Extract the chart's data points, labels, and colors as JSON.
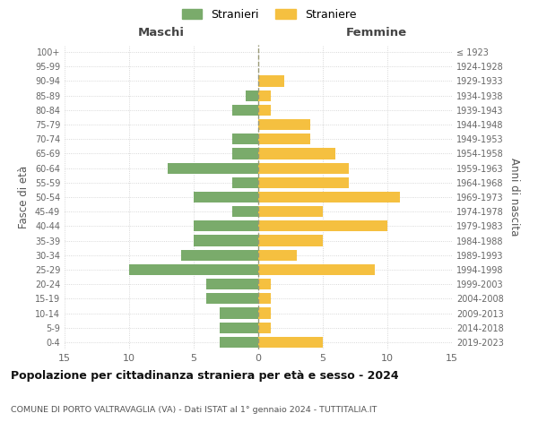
{
  "age_groups": [
    "0-4",
    "5-9",
    "10-14",
    "15-19",
    "20-24",
    "25-29",
    "30-34",
    "35-39",
    "40-44",
    "45-49",
    "50-54",
    "55-59",
    "60-64",
    "65-69",
    "70-74",
    "75-79",
    "80-84",
    "85-89",
    "90-94",
    "95-99",
    "100+"
  ],
  "birth_years": [
    "2019-2023",
    "2014-2018",
    "2009-2013",
    "2004-2008",
    "1999-2003",
    "1994-1998",
    "1989-1993",
    "1984-1988",
    "1979-1983",
    "1974-1978",
    "1969-1973",
    "1964-1968",
    "1959-1963",
    "1954-1958",
    "1949-1953",
    "1944-1948",
    "1939-1943",
    "1934-1938",
    "1929-1933",
    "1924-1928",
    "≤ 1923"
  ],
  "maschi": [
    3,
    3,
    3,
    4,
    4,
    10,
    6,
    5,
    5,
    2,
    5,
    2,
    7,
    2,
    2,
    0,
    2,
    1,
    0,
    0,
    0
  ],
  "femmine": [
    5,
    1,
    1,
    1,
    1,
    9,
    3,
    5,
    10,
    5,
    11,
    7,
    7,
    6,
    4,
    4,
    1,
    1,
    2,
    0,
    0
  ],
  "color_maschi": "#7aab6b",
  "color_femmine": "#f5c040",
  "background_color": "#ffffff",
  "grid_color": "#cccccc",
  "title": "Popolazione per cittadinanza straniera per età e sesso - 2024",
  "subtitle": "COMUNE DI PORTO VALTRAVAGLIA (VA) - Dati ISTAT al 1° gennaio 2024 - TUTTITALIA.IT",
  "xlabel_left": "Maschi",
  "xlabel_right": "Femmine",
  "ylabel_left": "Fasce di età",
  "ylabel_right": "Anni di nascita",
  "legend_stranieri": "Stranieri",
  "legend_straniere": "Straniere",
  "xlim": 15,
  "bar_height": 0.75
}
